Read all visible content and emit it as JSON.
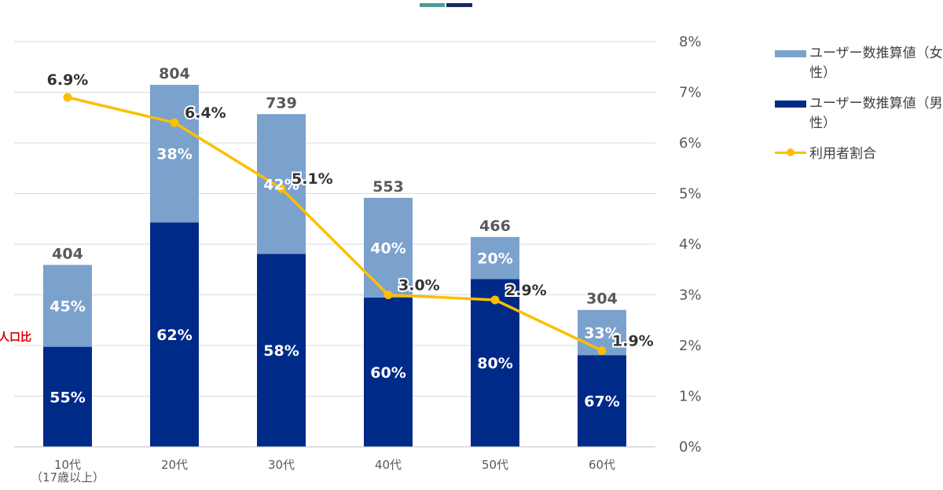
{
  "colors": {
    "female": "#7ba1cd",
    "male": "#002a88",
    "rate": "#fbbf00",
    "grid": "#d9d9d9",
    "header_teal": "#4e9c97",
    "header_navy": "#1b2a5c"
  },
  "side_label": "人口比",
  "legend": {
    "female": "ユーザー数推算値（女性）",
    "male": "ユーザー数推算値（男性）",
    "rate": "利用者割合"
  },
  "chart_data": {
    "type": "bar",
    "stacked": true,
    "categories": [
      "10代",
      "20代",
      "30代",
      "40代",
      "50代",
      "60代"
    ],
    "category_sublabels": [
      "（17歳以上）",
      "",
      "",
      "",
      "",
      ""
    ],
    "totals": [
      404,
      804,
      739,
      553,
      466,
      304
    ],
    "series": [
      {
        "name": "ユーザー数推算値（男性）",
        "share_labels": [
          "55%",
          "62%",
          "58%",
          "60%",
          "80%",
          "67%"
        ]
      },
      {
        "name": "ユーザー数推算値（女性）",
        "share_labels": [
          "45%",
          "38%",
          "42%",
          "40%",
          "20%",
          "33%"
        ]
      }
    ],
    "line_series": {
      "name": "利用者割合",
      "values": [
        6.9,
        6.4,
        5.1,
        3.0,
        2.9,
        1.9
      ],
      "labels": [
        "6.9%",
        "6.4%",
        "5.1%",
        "3.0%",
        "2.9%",
        "1.9%"
      ]
    },
    "y_left_range": [
      0,
      900
    ],
    "y_right_range": [
      0,
      8
    ],
    "y_right_ticks": [
      "0%",
      "1%",
      "2%",
      "3%",
      "4%",
      "5%",
      "6%",
      "7%",
      "8%"
    ],
    "grid": true,
    "legend_position": "right"
  }
}
